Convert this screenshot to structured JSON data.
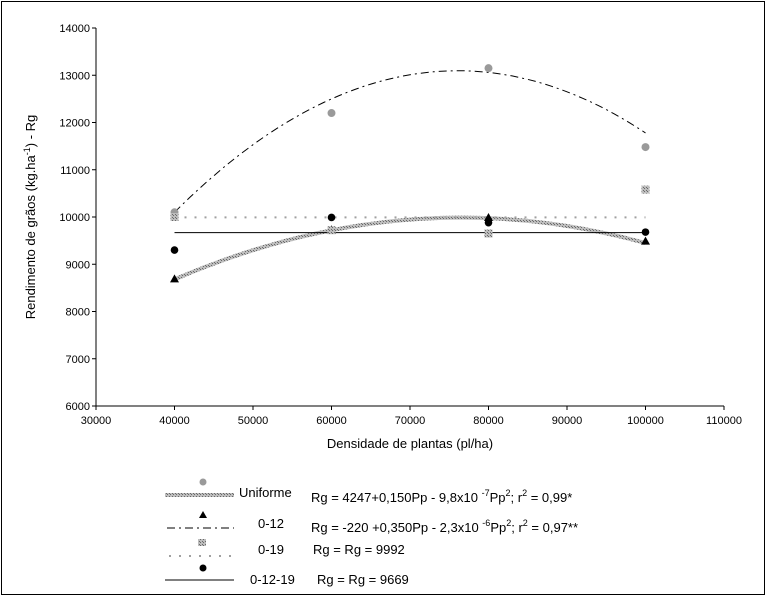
{
  "chart_data": {
    "type": "scatter",
    "xlabel": "Densidade de plantas (pl/ha)",
    "ylabel": "Rendimento de grãos (kg.ha -1) - Rg",
    "xlim": [
      30000,
      110000
    ],
    "ylim": [
      6000,
      14000
    ],
    "x_ticks": [
      "30000",
      "40000",
      "50000",
      "60000",
      "70000",
      "80000",
      "90000",
      "100000",
      "110000"
    ],
    "y_ticks": [
      "6000",
      "7000",
      "8000",
      "9000",
      "10000",
      "11000",
      "12000",
      "13000",
      "14000"
    ],
    "grid": false,
    "legend_position": "bottom",
    "series": [
      {
        "name": "Uniforme",
        "equation": "Rg = 4247+0,150Pp - 9,8x10 -7Pp2; r2 = 0,99*",
        "marker": "circle",
        "color": "#a0a0a0",
        "line": "thick-gray",
        "x": [
          40000,
          60000,
          80000,
          100000
        ],
        "y": [
          10100,
          12200,
          13150,
          11480
        ],
        "fit": {
          "a": 4247,
          "b": 0.15,
          "c": -9.8e-07
        }
      },
      {
        "name": "0-12",
        "equation": "Rg = -220 +0,350Pp - 2,3x10 -6Pp2; r2 = 0,97**",
        "marker": "triangle",
        "color": "#000000",
        "line": "dash-dot",
        "x": [
          40000,
          60000,
          80000,
          100000
        ],
        "y": [
          8680,
          9720,
          9980,
          9480
        ],
        "fit": {
          "a": -220,
          "b": 0.35,
          "c": -2.3e-06
        }
      },
      {
        "name": "0-19",
        "equation": "Rg = Rg = 9992",
        "marker": "square",
        "color": "#a0a0a0",
        "line": "dotted-x",
        "x": [
          40000,
          60000,
          80000,
          100000
        ],
        "y": [
          10000,
          9720,
          9650,
          10580
        ],
        "fit_constant": 9992
      },
      {
        "name": "0-12-19",
        "equation": "Rg = Rg = 9669",
        "marker": "dot",
        "color": "#000000",
        "line": "solid-thin",
        "x": [
          40000,
          60000,
          80000,
          100000
        ],
        "y": [
          9300,
          9990,
          9880,
          9680
        ],
        "fit_constant": 9669
      }
    ]
  }
}
